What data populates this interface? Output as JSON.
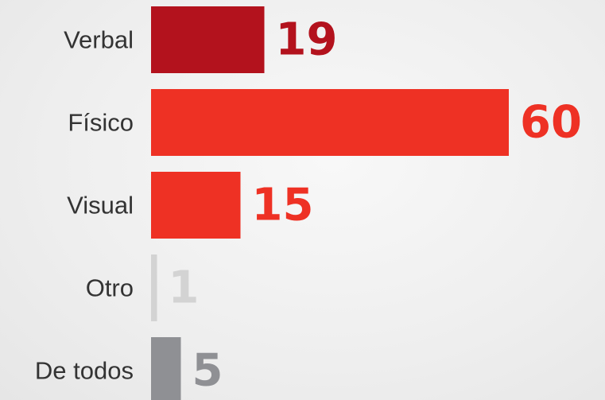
{
  "chart_data": {
    "type": "bar",
    "orientation": "horizontal",
    "title": "",
    "xlabel": "",
    "ylabel": "",
    "grid": false,
    "categories": [
      "Verbal",
      "Físico",
      "Visual",
      "Otro",
      "De todos"
    ],
    "values": [
      19,
      60,
      15,
      1,
      5
    ],
    "value_labels": [
      "19",
      "60",
      "15",
      "1",
      "5"
    ],
    "bar_colors": [
      "#b3121d",
      "#ee3124",
      "#ee3124",
      "#d3d3d3",
      "#8f9094"
    ],
    "value_label_colors": [
      "#b3121d",
      "#ee3124",
      "#ee3124",
      "#d3d3d3",
      "#8f9094"
    ],
    "xlim": [
      0,
      60
    ]
  }
}
